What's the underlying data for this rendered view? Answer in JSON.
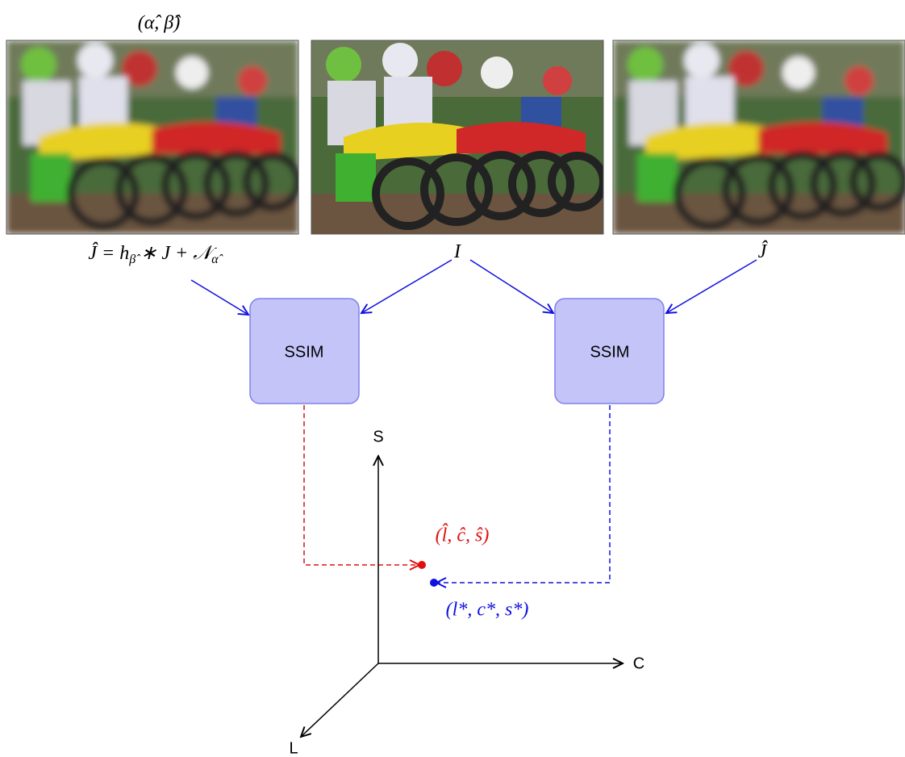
{
  "images": [
    {
      "caption_top": "(α̂, β̂)",
      "caption": [
        "Ĵ = h",
        "β̂",
        " ∗ J + 𝒩",
        "α̂"
      ]
    },
    {
      "caption": [
        "I"
      ]
    },
    {
      "caption": [
        "Ĵ"
      ]
    }
  ],
  "nodes": [
    {
      "label": "SSIM"
    },
    {
      "label": "SSIM"
    }
  ],
  "axes": {
    "y": "S",
    "x": "C",
    "z": "L"
  },
  "points": [
    {
      "label": "(l̂, ĉ, ŝ)"
    },
    {
      "label": "(l*, c*, s*)"
    }
  ]
}
